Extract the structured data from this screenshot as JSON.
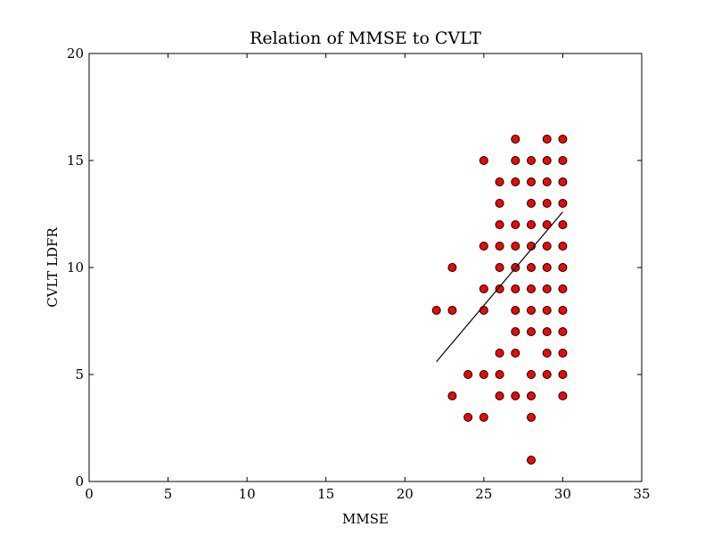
{
  "chart_data": {
    "type": "scatter",
    "title": "Relation of MMSE to CVLT",
    "xlabel": "MMSE",
    "ylabel": "CVLT LDFR",
    "xlim": [
      0,
      35
    ],
    "ylim": [
      0,
      20
    ],
    "xticks": [
      0,
      5,
      10,
      15,
      20,
      25,
      30,
      35
    ],
    "yticks": [
      0,
      5,
      10,
      15,
      20
    ],
    "grid": false,
    "marker_color": "#ff0000",
    "marker_edge_color": "#000000",
    "trend_line": {
      "x": [
        22,
        30
      ],
      "y": [
        5.6,
        12.6
      ],
      "color": "#000000"
    },
    "points": [
      {
        "x": 22,
        "y": 8
      },
      {
        "x": 23,
        "y": 10
      },
      {
        "x": 23,
        "y": 8
      },
      {
        "x": 23,
        "y": 4
      },
      {
        "x": 24,
        "y": 5
      },
      {
        "x": 24,
        "y": 3
      },
      {
        "x": 25,
        "y": 15
      },
      {
        "x": 25,
        "y": 11
      },
      {
        "x": 25,
        "y": 9
      },
      {
        "x": 25,
        "y": 8
      },
      {
        "x": 25,
        "y": 5
      },
      {
        "x": 25,
        "y": 3
      },
      {
        "x": 26,
        "y": 14
      },
      {
        "x": 26,
        "y": 13
      },
      {
        "x": 26,
        "y": 12
      },
      {
        "x": 26,
        "y": 11
      },
      {
        "x": 26,
        "y": 10
      },
      {
        "x": 26,
        "y": 9
      },
      {
        "x": 26,
        "y": 6
      },
      {
        "x": 26,
        "y": 5
      },
      {
        "x": 26,
        "y": 4
      },
      {
        "x": 27,
        "y": 16
      },
      {
        "x": 27,
        "y": 15
      },
      {
        "x": 27,
        "y": 14
      },
      {
        "x": 27,
        "y": 12
      },
      {
        "x": 27,
        "y": 11
      },
      {
        "x": 27,
        "y": 10
      },
      {
        "x": 27,
        "y": 9
      },
      {
        "x": 27,
        "y": 8
      },
      {
        "x": 27,
        "y": 7
      },
      {
        "x": 27,
        "y": 6
      },
      {
        "x": 27,
        "y": 4
      },
      {
        "x": 28,
        "y": 15
      },
      {
        "x": 28,
        "y": 14
      },
      {
        "x": 28,
        "y": 13
      },
      {
        "x": 28,
        "y": 12
      },
      {
        "x": 28,
        "y": 11
      },
      {
        "x": 28,
        "y": 10
      },
      {
        "x": 28,
        "y": 9
      },
      {
        "x": 28,
        "y": 8
      },
      {
        "x": 28,
        "y": 7
      },
      {
        "x": 28,
        "y": 5
      },
      {
        "x": 28,
        "y": 4
      },
      {
        "x": 28,
        "y": 3
      },
      {
        "x": 28,
        "y": 1
      },
      {
        "x": 29,
        "y": 16
      },
      {
        "x": 29,
        "y": 15
      },
      {
        "x": 29,
        "y": 14
      },
      {
        "x": 29,
        "y": 13
      },
      {
        "x": 29,
        "y": 12
      },
      {
        "x": 29,
        "y": 11
      },
      {
        "x": 29,
        "y": 10
      },
      {
        "x": 29,
        "y": 9
      },
      {
        "x": 29,
        "y": 8
      },
      {
        "x": 29,
        "y": 7
      },
      {
        "x": 29,
        "y": 6
      },
      {
        "x": 29,
        "y": 5
      },
      {
        "x": 30,
        "y": 16
      },
      {
        "x": 30,
        "y": 15
      },
      {
        "x": 30,
        "y": 14
      },
      {
        "x": 30,
        "y": 13
      },
      {
        "x": 30,
        "y": 12
      },
      {
        "x": 30,
        "y": 11
      },
      {
        "x": 30,
        "y": 10
      },
      {
        "x": 30,
        "y": 9
      },
      {
        "x": 30,
        "y": 8
      },
      {
        "x": 30,
        "y": 7
      },
      {
        "x": 30,
        "y": 6
      },
      {
        "x": 30,
        "y": 5
      },
      {
        "x": 30,
        "y": 4
      }
    ]
  }
}
